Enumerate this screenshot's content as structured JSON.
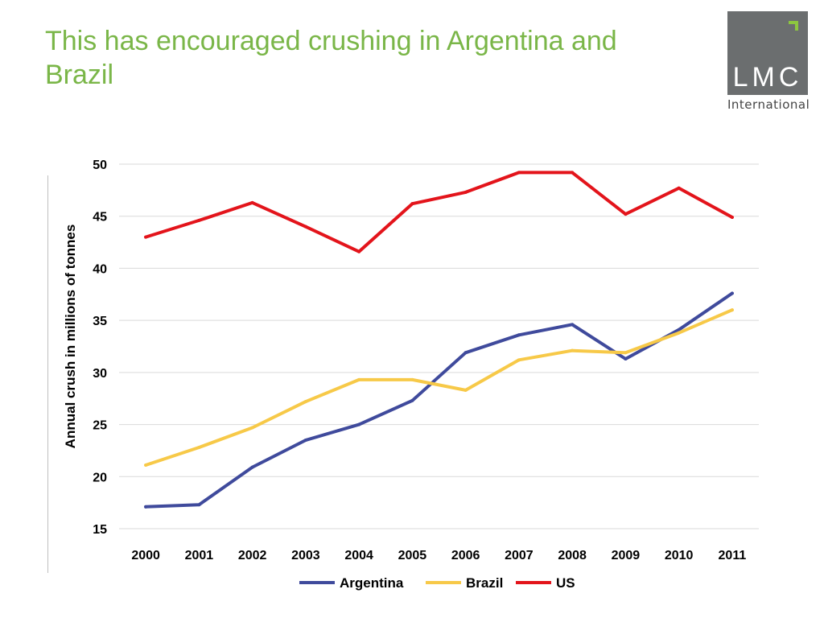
{
  "slide": {
    "title": "This has encouraged crushing in Argentina and Brazil"
  },
  "logo": {
    "main": "LMC",
    "sub": "International",
    "colors": {
      "box": "#6b6e6f",
      "mark": "#8dc63f"
    }
  },
  "chart_data": {
    "type": "line",
    "x": [
      "2000",
      "2001",
      "2002",
      "2003",
      "2004",
      "2005",
      "2006",
      "2007",
      "2008",
      "2009",
      "2010",
      "2011"
    ],
    "ylabel": "Annual crush in millions of tonnes",
    "xlabel": "",
    "ylim": [
      15,
      50
    ],
    "yticks": [
      15,
      20,
      25,
      30,
      35,
      40,
      45,
      50
    ],
    "grid": true,
    "legend_position": "bottom",
    "series": [
      {
        "name": "Argentina",
        "color": "#3f4a9c",
        "values": [
          17.1,
          17.3,
          20.9,
          23.5,
          25.0,
          27.3,
          31.9,
          33.6,
          34.6,
          31.3,
          34.1,
          37.6
        ]
      },
      {
        "name": "Brazil",
        "color": "#f7c948",
        "values": [
          21.1,
          22.8,
          24.7,
          27.2,
          29.3,
          29.3,
          28.3,
          31.2,
          32.1,
          31.9,
          33.8,
          36.0
        ]
      },
      {
        "name": "US",
        "color": "#e3141b",
        "values": [
          43.0,
          44.6,
          46.3,
          44.0,
          41.6,
          46.2,
          47.3,
          49.2,
          49.2,
          45.2,
          47.7,
          44.9
        ]
      }
    ]
  }
}
